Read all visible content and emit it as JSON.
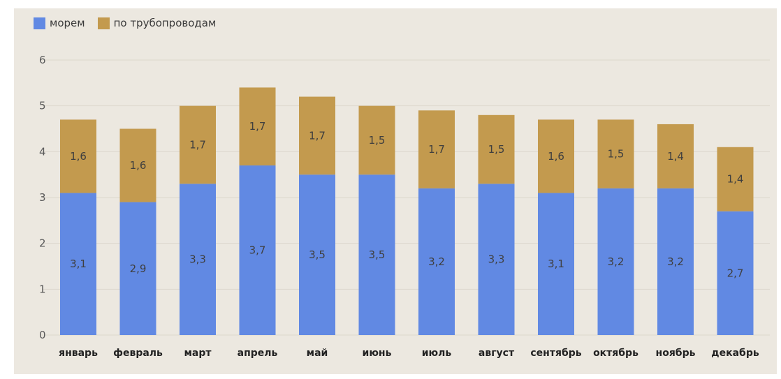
{
  "chart_data": {
    "type": "bar",
    "stacked": true,
    "categories": [
      "январь",
      "февраль",
      "март",
      "апрель",
      "май",
      "июнь",
      "июль",
      "август",
      "сентябрь",
      "октябрь",
      "ноябрь",
      "декабрь"
    ],
    "series": [
      {
        "name": "морем",
        "color": "#6189e3",
        "values": [
          3.1,
          2.9,
          3.3,
          3.7,
          3.5,
          3.5,
          3.2,
          3.3,
          3.1,
          3.2,
          3.2,
          2.7
        ],
        "labels": [
          "3,1",
          "2,9",
          "3,3",
          "3,7",
          "3,5",
          "3,5",
          "3,2",
          "3,3",
          "3,1",
          "3,2",
          "3,2",
          "2,7"
        ]
      },
      {
        "name": "по трубопроводам",
        "color": "#c39a4e",
        "values": [
          1.6,
          1.6,
          1.7,
          1.7,
          1.7,
          1.5,
          1.7,
          1.5,
          1.6,
          1.5,
          1.4,
          1.4
        ],
        "labels": [
          "1,6",
          "1,6",
          "1,7",
          "1,7",
          "1,7",
          "1,5",
          "1,7",
          "1,5",
          "1,6",
          "1,5",
          "1,4",
          "1,4"
        ]
      }
    ],
    "ylim": [
      0,
      6
    ],
    "yticks": [
      "0",
      "1",
      "2",
      "3",
      "4",
      "5",
      "6"
    ],
    "grid": true,
    "legend": "top-left",
    "xlabel": "",
    "ylabel": ""
  }
}
